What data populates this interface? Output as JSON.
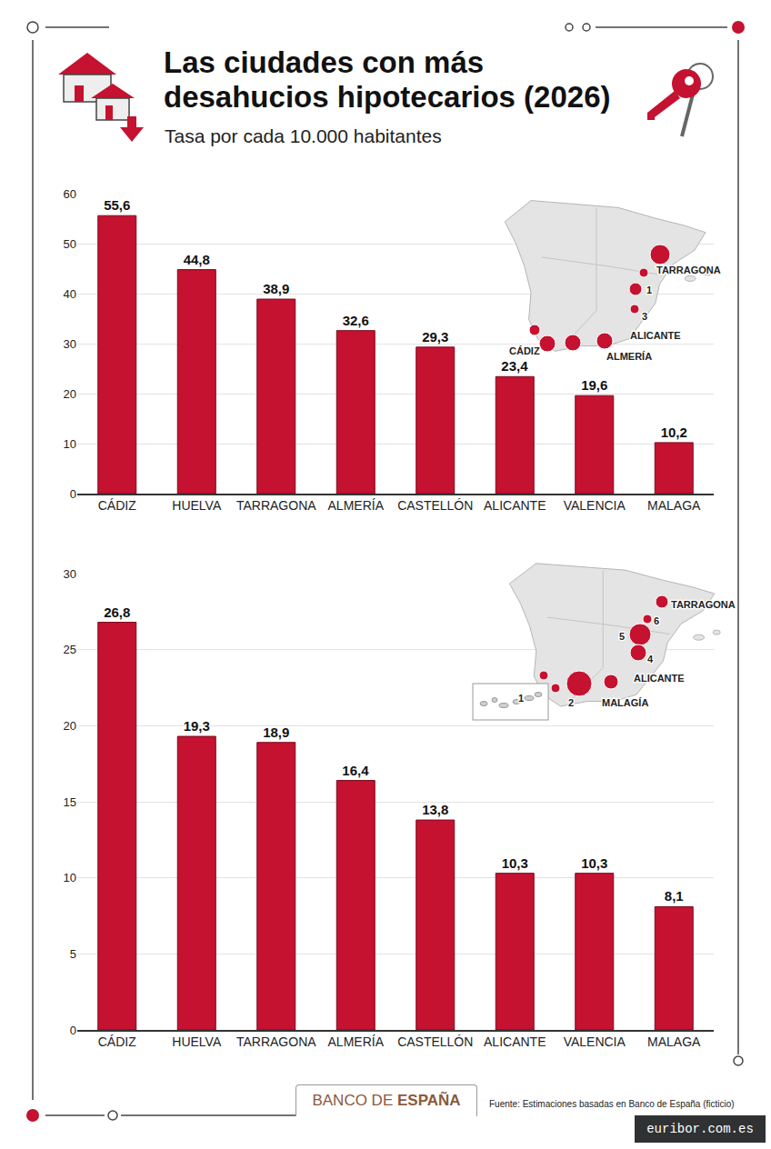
{
  "header": {
    "title": "Las ciudades con más desahucios hipotecarios (2026)",
    "subtitle": "Tasa por cada 10.000 habitantes"
  },
  "footer": {
    "brand": "BANCO DE ESPAÑA",
    "source": "Fuente: Estimaciones basadas en Banco de España (ficticio)",
    "watermark": "euribor.com.es"
  },
  "chart_data": [
    {
      "type": "bar",
      "categories": [
        "CÁDIZ",
        "HUELVA",
        "TARRAGONA",
        "ALMERÍA",
        "CASTELLÓN",
        "ALICANTE",
        "VALENCIA",
        "MALAGA"
      ],
      "values": [
        55.6,
        44.8,
        38.9,
        32.6,
        29.3,
        23.4,
        19.6,
        10.2
      ],
      "value_labels": [
        "55,6",
        "44,8",
        "38,9",
        "32,6",
        "29,3",
        "23,4",
        "19,6",
        "10,2"
      ],
      "color": "#c41230",
      "ylim": [
        0,
        60
      ],
      "yticks": [
        0,
        10,
        20,
        30,
        40,
        50,
        60
      ],
      "grid": true,
      "data_labels": true,
      "annotations": [
        "TARRAGONA",
        "1",
        "3",
        "ALICANTE",
        "CÁDIZ",
        "ALMERÍA"
      ]
    },
    {
      "type": "bar",
      "categories": [
        "CÁDIZ",
        "HUELVA",
        "TARRAGONA",
        "ALMERÍA",
        "CASTELLÓN",
        "ALICANTE",
        "VALENCIA",
        "MALAGA"
      ],
      "values": [
        26.8,
        19.3,
        18.9,
        16.4,
        13.8,
        10.3,
        10.3,
        8.1
      ],
      "value_labels": [
        "26,8",
        "19,3",
        "18,9",
        "16,4",
        "13,8",
        "10,3",
        "10,3",
        "8,1"
      ],
      "color": "#c41230",
      "ylim": [
        0,
        30
      ],
      "yticks": [
        0,
        5,
        10,
        15,
        20,
        25,
        30
      ],
      "grid": true,
      "data_labels": true,
      "annotations": [
        "TARRAGONA",
        "6",
        "5",
        "4",
        "ALICANTE",
        "1",
        "2",
        "MALAGÍA"
      ]
    }
  ]
}
